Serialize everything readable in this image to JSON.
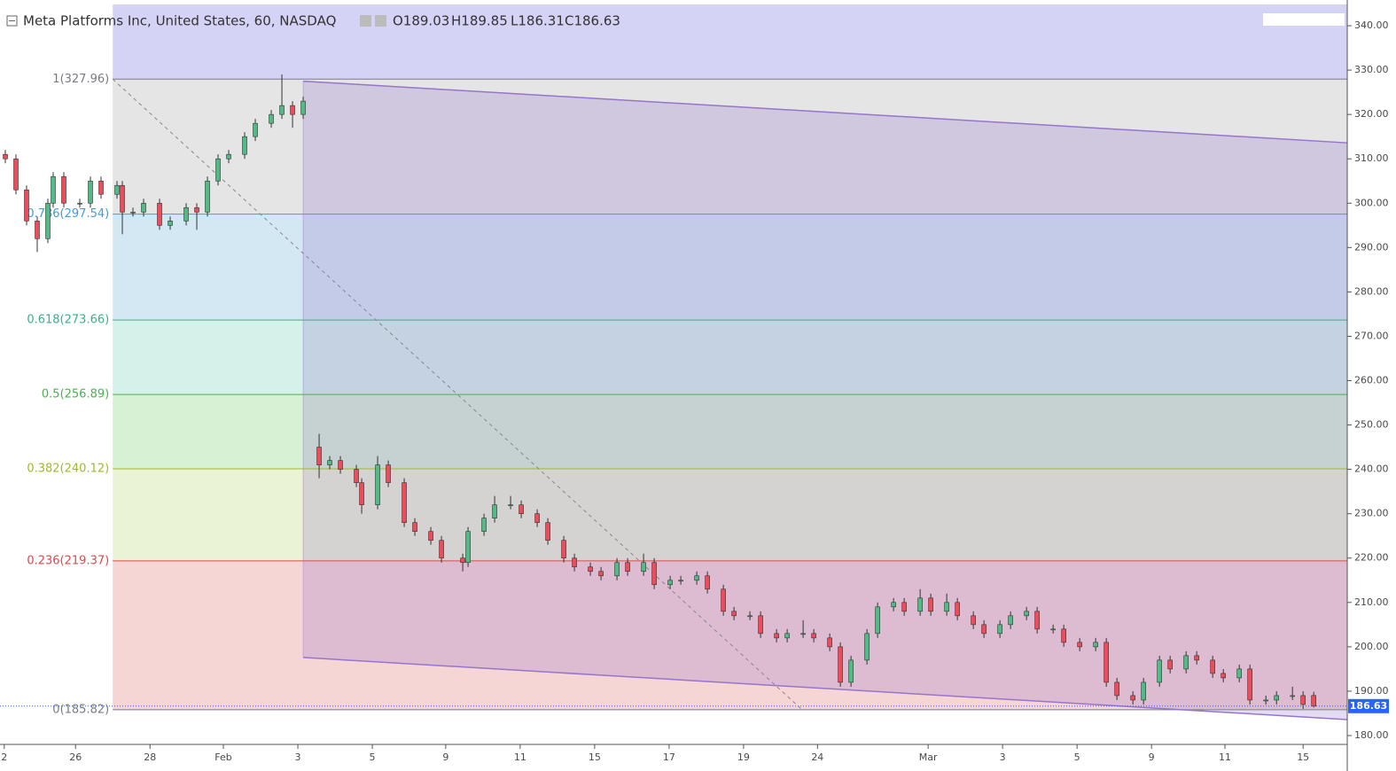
{
  "chart_data": {
    "type": "candlestick",
    "title": "Meta Platforms Inc, United States, 60, NASDAQ",
    "ohlc_header": [
      "O189.03",
      "H189.85",
      "L186.31",
      "C186.63"
    ],
    "up_color": "#53b987",
    "down_color": "#eb4d5c",
    "xlim": [
      0,
      253.3
    ],
    "xticks": [
      {
        "value": 0.8,
        "label": "2"
      },
      {
        "value": 14.2,
        "label": "26"
      },
      {
        "value": 28.2,
        "label": "28"
      },
      {
        "value": 42,
        "label": "Feb"
      },
      {
        "value": 56,
        "label": "3"
      },
      {
        "value": 70,
        "label": "5"
      },
      {
        "value": 83.8,
        "label": "9"
      },
      {
        "value": 97.8,
        "label": "11"
      },
      {
        "value": 111.8,
        "label": "15"
      },
      {
        "value": 125.8,
        "label": "17"
      },
      {
        "value": 139.8,
        "label": "19"
      },
      {
        "value": 153.7,
        "label": "24"
      },
      {
        "value": 174.5,
        "label": "Mar"
      },
      {
        "value": 188.5,
        "label": "3"
      },
      {
        "value": 202.5,
        "label": "5"
      },
      {
        "value": 216.5,
        "label": "9"
      },
      {
        "value": 230.3,
        "label": "11"
      },
      {
        "value": 245,
        "label": "15"
      }
    ],
    "ylim": [
      178,
      344.8
    ],
    "yticks": [
      {
        "value": 180,
        "label": "180.00"
      },
      {
        "value": 190,
        "label": "190.00"
      },
      {
        "value": 200,
        "label": "200.00"
      },
      {
        "value": 210,
        "label": "210.00"
      },
      {
        "value": 220,
        "label": "220.00"
      },
      {
        "value": 230,
        "label": "230.00"
      },
      {
        "value": 240,
        "label": "240.00"
      },
      {
        "value": 250,
        "label": "250.00"
      },
      {
        "value": 260,
        "label": "260.00"
      },
      {
        "value": 270,
        "label": "270.00"
      },
      {
        "value": 280,
        "label": "280.00"
      },
      {
        "value": 290,
        "label": "290.00"
      },
      {
        "value": 300,
        "label": "300.00"
      },
      {
        "value": 310,
        "label": "310.00"
      },
      {
        "value": 320,
        "label": "320.00"
      },
      {
        "value": 330,
        "label": "330.00"
      },
      {
        "value": 340,
        "label": "340.00"
      }
    ],
    "series": {
      "x": [
        1,
        3,
        5,
        7,
        9,
        10,
        12,
        15,
        17,
        19,
        22,
        23,
        25,
        27,
        30,
        32,
        35,
        37,
        39,
        41,
        43,
        46,
        48,
        51,
        53,
        55,
        57,
        60,
        62,
        64,
        67,
        68,
        71,
        73,
        76,
        78,
        81,
        83,
        87,
        88,
        91,
        93,
        96,
        98,
        101,
        103,
        106,
        108,
        111,
        113,
        116,
        118,
        121,
        123,
        126,
        128,
        131,
        133,
        136,
        138,
        141,
        143,
        146,
        148,
        151,
        153,
        156,
        158,
        160,
        163,
        165,
        168,
        170,
        173,
        175,
        178,
        180,
        183,
        185,
        188,
        190,
        193,
        195,
        198,
        200,
        203,
        206,
        208,
        210,
        213,
        215,
        218,
        220,
        223,
        225,
        228,
        230,
        233,
        235,
        238,
        240,
        243,
        245,
        247
      ],
      "open": [
        311,
        310,
        303,
        296,
        292,
        300,
        306,
        300,
        300,
        305,
        302,
        304,
        298,
        298,
        300,
        295,
        296,
        299,
        298,
        305,
        310,
        311,
        315,
        318,
        320,
        322,
        320,
        245,
        241,
        242,
        240,
        237,
        232,
        241,
        237,
        228,
        226,
        224,
        220,
        219,
        226,
        229,
        232,
        232,
        230,
        228,
        224,
        220,
        218,
        217,
        216,
        219,
        217,
        219,
        214,
        215,
        215,
        216,
        213,
        208,
        207,
        207,
        203,
        202,
        203,
        203,
        202,
        200,
        192,
        197,
        203,
        209,
        210,
        208,
        211,
        208,
        210,
        207,
        205,
        203,
        205,
        207,
        208,
        204,
        204,
        201,
        200,
        201,
        192,
        189,
        188,
        192,
        197,
        195,
        198,
        197,
        194,
        193,
        195,
        188,
        188,
        189,
        189,
        189.03
      ],
      "high": [
        312,
        311,
        304,
        297,
        301,
        307,
        307,
        301,
        306,
        306,
        305,
        305,
        299,
        301,
        301,
        297,
        300,
        300,
        306,
        311,
        312,
        316,
        319,
        321,
        329,
        323,
        324,
        248,
        243,
        243,
        241,
        238,
        243,
        242,
        238,
        229,
        227,
        225,
        221,
        227,
        230,
        234,
        234,
        233,
        231,
        229,
        225,
        221,
        219,
        218,
        220,
        220,
        221,
        220,
        216,
        216,
        217,
        217,
        214,
        209,
        208,
        208,
        204,
        204,
        206,
        204,
        203,
        201,
        198,
        204,
        210,
        211,
        211,
        213,
        212,
        212,
        211,
        208,
        206,
        206,
        208,
        209,
        209,
        205,
        205,
        202,
        202,
        202,
        193,
        190,
        193,
        198,
        198,
        199,
        199,
        198,
        195,
        196,
        196,
        189,
        190,
        191,
        190,
        189.85
      ],
      "low": [
        309,
        302,
        295,
        289,
        291,
        299,
        299,
        299,
        299,
        301,
        301,
        293,
        297,
        297,
        294,
        294,
        295,
        294,
        297,
        304,
        309,
        310,
        314,
        317,
        319,
        317,
        319,
        238,
        240,
        239,
        236,
        230,
        231,
        236,
        227,
        225,
        223,
        219,
        217,
        218,
        225,
        228,
        231,
        229,
        227,
        223,
        219,
        217,
        216,
        215,
        215,
        216,
        216,
        213,
        213,
        214,
        214,
        212,
        207,
        206,
        206,
        202,
        201,
        201,
        202,
        201,
        199,
        191,
        191,
        196,
        202,
        208,
        207,
        207,
        207,
        207,
        206,
        204,
        202,
        202,
        204,
        206,
        203,
        203,
        200,
        199,
        199,
        191,
        188,
        187,
        187,
        191,
        194,
        194,
        196,
        193,
        192,
        192,
        187,
        187,
        187,
        188,
        186,
        186.31
      ],
      "close": [
        310,
        303,
        296,
        292,
        300,
        306,
        300,
        300,
        305,
        302,
        304,
        298,
        298,
        300,
        295,
        296,
        299,
        298,
        305,
        310,
        311,
        315,
        318,
        320,
        322,
        320,
        323,
        241,
        242,
        240,
        237,
        232,
        241,
        237,
        228,
        226,
        224,
        220,
        219,
        226,
        229,
        232,
        232,
        230,
        228,
        224,
        220,
        218,
        217,
        216,
        219,
        217,
        219,
        214,
        215,
        215,
        216,
        213,
        208,
        207,
        207,
        203,
        202,
        203,
        203,
        202,
        200,
        192,
        197,
        203,
        209,
        210,
        208,
        211,
        208,
        210,
        207,
        205,
        203,
        205,
        207,
        208,
        204,
        204,
        201,
        200,
        201,
        192,
        189,
        188,
        192,
        197,
        195,
        198,
        197,
        194,
        193,
        195,
        188,
        188,
        189,
        189,
        187,
        186.63
      ]
    },
    "fib": {
      "x": [
        21.2,
        150.8
      ],
      "top_fill": "#d5d3f5",
      "levels": [
        {
          "label": "1(327.96)",
          "value": 327.96,
          "color": "#787b86",
          "fill": "#e5e5e5"
        },
        {
          "label": "0.786(297.54)",
          "value": 297.54,
          "color": "#3d9fd6",
          "fill": "#d4e8f3"
        },
        {
          "label": "0.618(273.66)",
          "value": 273.66,
          "color": "#36b38a",
          "fill": "#d4f2e9"
        },
        {
          "label": "0.5(256.89)",
          "value": 256.89,
          "color": "#4caf50",
          "fill": "#d7f1d4"
        },
        {
          "label": "0.382(240.12)",
          "value": 240.12,
          "color": "#a0b92c",
          "fill": "#ebf3d5"
        },
        {
          "label": "0.236(219.37)",
          "value": 219.37,
          "color": "#d94b4b",
          "fill": "#f6d5d5"
        },
        {
          "label": "0(185.82)",
          "value": 185.82,
          "color": "#787b86"
        }
      ]
    },
    "channel": {
      "x": [
        57,
        253.3
      ],
      "upper": [
        327.5,
        313.6
      ],
      "lower": [
        197.6,
        183.6
      ],
      "color": "#9575cd"
    },
    "last_price_color": "#2962ff"
  }
}
